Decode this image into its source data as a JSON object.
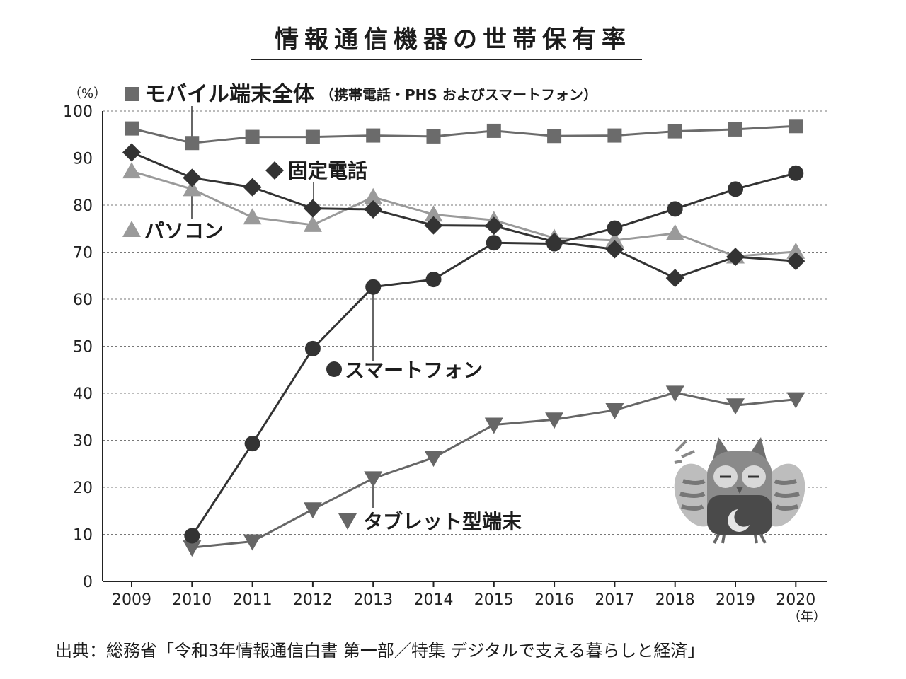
{
  "title": "情報通信機器の世帯保有率",
  "source": "出典：総務省「令和3年情報通信白書 第一部／特集 デジタルで支える暮らしと経済」",
  "chart_data": {
    "type": "line",
    "title": "情報通信機器の世帯保有率",
    "y_unit": "（%）",
    "x_unit": "（年）",
    "x": [
      "2009",
      "2010",
      "2011",
      "2012",
      "2013",
      "2014",
      "2015",
      "2016",
      "2017",
      "2018",
      "2019",
      "2020"
    ],
    "ylim": [
      0,
      100
    ],
    "yticks": [
      0,
      10,
      20,
      30,
      40,
      50,
      60,
      70,
      80,
      90,
      100
    ],
    "grid": "horizontal dotted",
    "series": [
      {
        "name": "モバイル端末全体",
        "name_suffix": "（携帯電話・PHS およびスマートフォン）",
        "marker": "square",
        "color": "#6b6b6b",
        "values": [
          96.3,
          93.2,
          94.5,
          94.5,
          94.8,
          94.6,
          95.8,
          94.7,
          94.8,
          95.7,
          96.1,
          96.8
        ]
      },
      {
        "name": "固定電話",
        "marker": "diamond",
        "color": "#333333",
        "values": [
          91.2,
          85.8,
          83.8,
          79.3,
          79.1,
          75.7,
          75.6,
          72.2,
          70.6,
          64.5,
          69.0,
          68.1
        ]
      },
      {
        "name": "パソコン",
        "marker": "triangle-up",
        "color": "#9a9a9a",
        "values": [
          87.2,
          83.4,
          77.4,
          75.8,
          81.7,
          78.0,
          76.8,
          73.0,
          72.5,
          74.0,
          69.1,
          70.1
        ]
      },
      {
        "name": "スマートフォン",
        "marker": "circle",
        "color": "#333333",
        "values": [
          null,
          9.7,
          29.3,
          49.5,
          62.6,
          64.2,
          72.0,
          71.8,
          75.1,
          79.2,
          83.4,
          86.8
        ]
      },
      {
        "name": "タブレット型端末",
        "marker": "triangle-down",
        "color": "#666666",
        "values": [
          null,
          7.2,
          8.5,
          15.3,
          21.9,
          26.3,
          33.3,
          34.4,
          36.4,
          40.1,
          37.4,
          38.7
        ]
      }
    ]
  },
  "mascot": {
    "icon": "owl-mascot-icon",
    "moon_icon": "crescent-moon-icon"
  }
}
